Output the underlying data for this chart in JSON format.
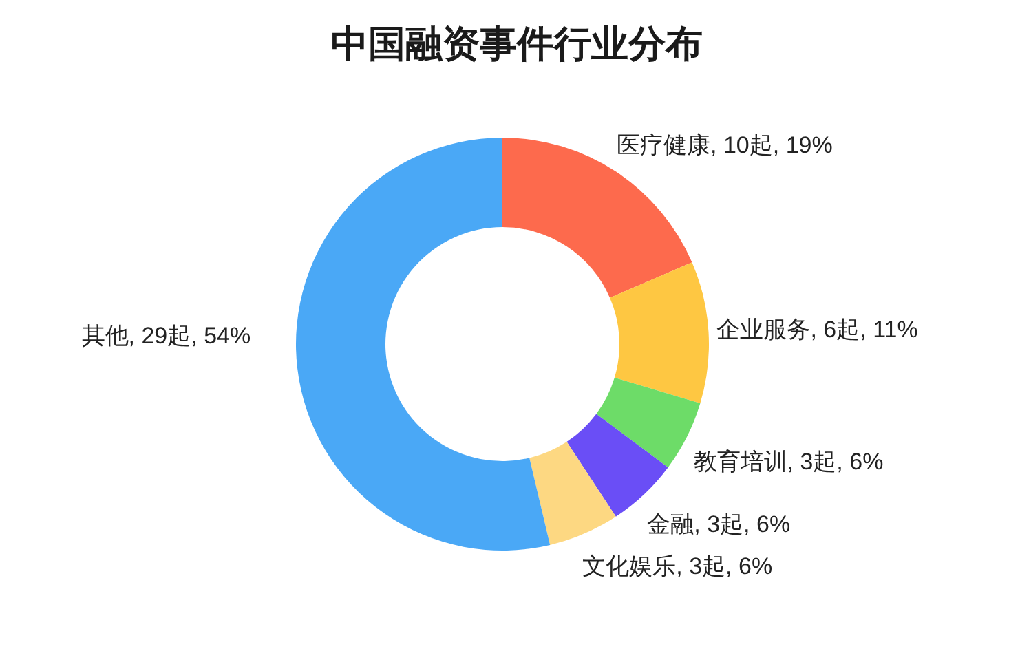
{
  "chart_data": {
    "type": "donut",
    "title": "中国融资事件行业分布",
    "categories": [
      "医疗健康",
      "企业服务",
      "教育培训",
      "金融",
      "文化娱乐",
      "其他"
    ],
    "values": [
      10,
      6,
      3,
      3,
      3,
      29
    ],
    "colors": [
      "#fd6a4d",
      "#fec742",
      "#6ddc68",
      "#6a4ef6",
      "#fdd882",
      "#4aa8f6"
    ],
    "value_labels": [
      "10起, 19%",
      "6起, 11%",
      "3起, 6%",
      "3起, 6%",
      "3起, 6%",
      "29起, 54%"
    ]
  }
}
